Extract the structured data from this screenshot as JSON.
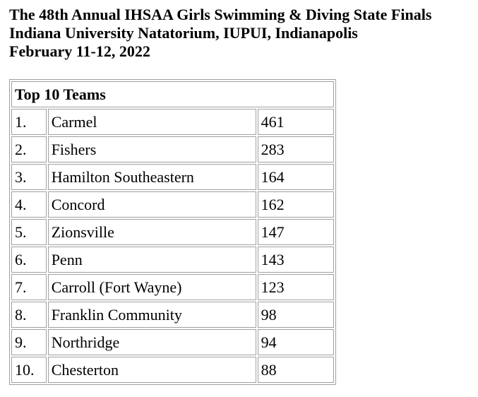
{
  "header": {
    "line1": "The 48th Annual IHSAA Girls Swimming & Diving State Finals",
    "line2": "Indiana University Natatorium, IUPUI, Indianapolis",
    "line3": "February 11-12, 2022"
  },
  "table": {
    "title": "Top 10 Teams",
    "rows": [
      {
        "rank": "1.",
        "team": "Carmel",
        "points": "461"
      },
      {
        "rank": "2.",
        "team": "Fishers",
        "points": "283"
      },
      {
        "rank": "3.",
        "team": "Hamilton Southeastern",
        "points": "164"
      },
      {
        "rank": "4.",
        "team": "Concord",
        "points": "162"
      },
      {
        "rank": "5.",
        "team": "Zionsville",
        "points": "147"
      },
      {
        "rank": "6.",
        "team": "Penn",
        "points": "143"
      },
      {
        "rank": "7.",
        "team": "Carroll (Fort Wayne)",
        "points": "123"
      },
      {
        "rank": "8.",
        "team": "Franklin Community",
        "points": "98"
      },
      {
        "rank": "9.",
        "team": "Northridge",
        "points": "94"
      },
      {
        "rank": "10.",
        "team": "Chesterton",
        "points": "88"
      }
    ]
  }
}
